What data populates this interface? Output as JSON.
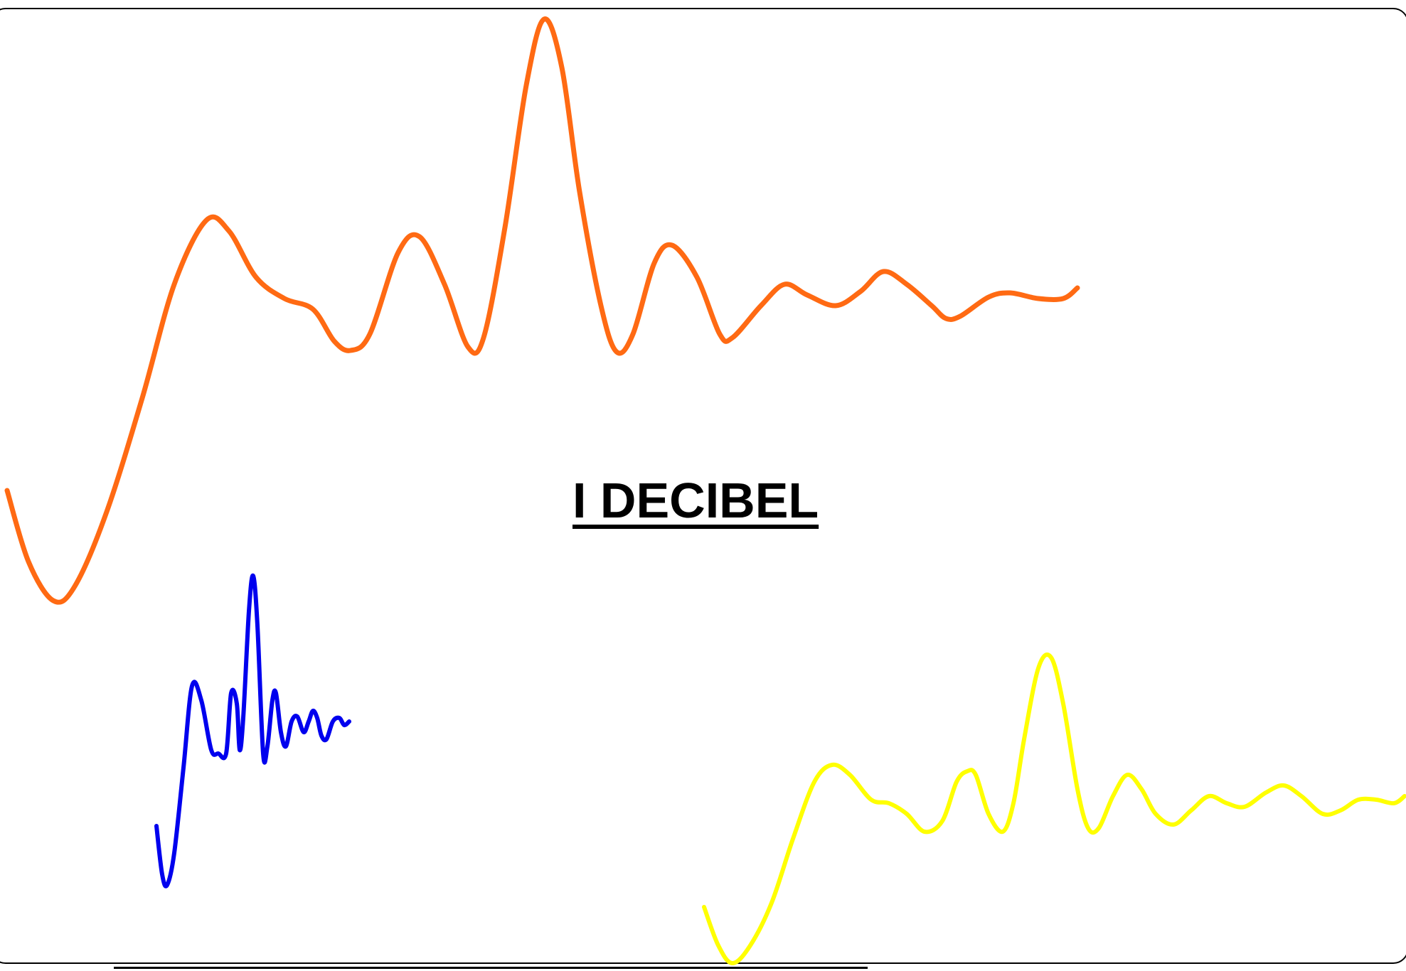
{
  "slide": {
    "title": "I DECIBEL"
  },
  "colors": {
    "orange_wave": "#ff6a13",
    "blue_wave": "#0000ee",
    "yellow_wave": "#ffff00",
    "border": "#000000",
    "text": "#000000"
  },
  "icons": [
    "orange-damped-wave-icon",
    "blue-damped-wave-icon",
    "yellow-damped-wave-icon"
  ]
}
